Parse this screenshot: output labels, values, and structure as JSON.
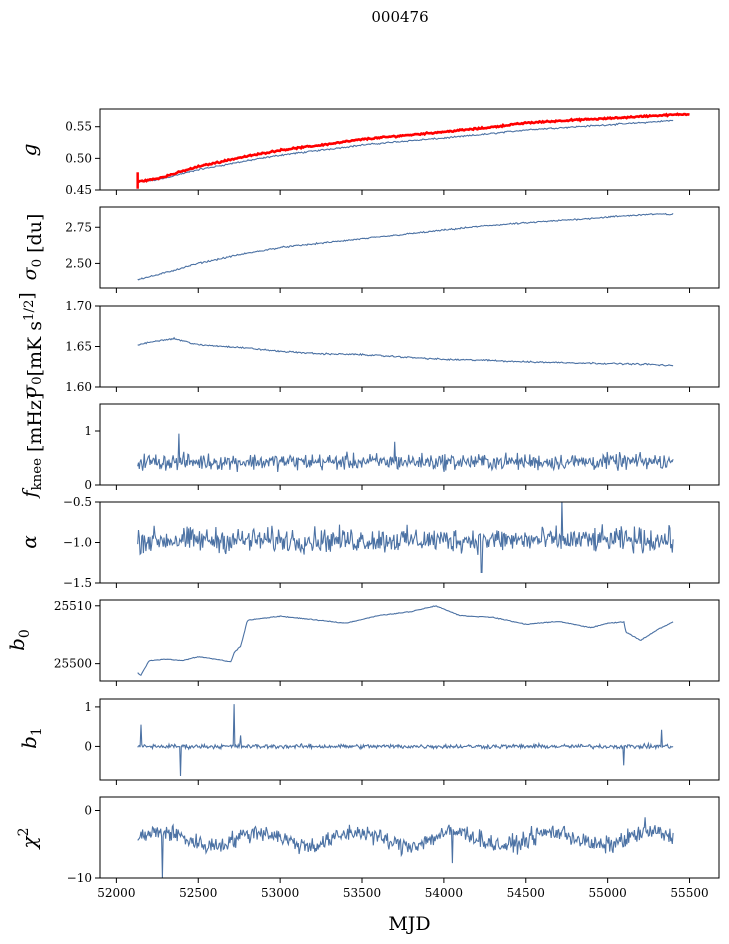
{
  "figure": {
    "title": "000476",
    "xlabel": "MJD"
  },
  "colors": {
    "series": "#4c72a4",
    "reference": "#ff0000",
    "axes": "#000000"
  },
  "chart_data": [
    {
      "type": "line",
      "ylabel": "$g$",
      "xlim": [
        51900,
        55680
      ],
      "ylim": [
        0.45,
        0.578
      ],
      "yticks": [
        0.45,
        0.5,
        0.55
      ],
      "ytick_labels": [
        "0.45",
        "0.50",
        "0.55"
      ],
      "grid": false,
      "x": [
        52130,
        52250,
        52500,
        52750,
        53000,
        53250,
        53500,
        53750,
        54000,
        54250,
        54500,
        54750,
        55000,
        55250,
        55400
      ],
      "series": [
        {
          "values": [
            0.463,
            0.466,
            0.482,
            0.494,
            0.505,
            0.513,
            0.521,
            0.527,
            0.532,
            0.538,
            0.545,
            0.549,
            0.553,
            0.557,
            0.56
          ]
        },
        {
          "values": [
            0.463,
            0.468,
            0.487,
            0.501,
            0.513,
            0.521,
            0.53,
            0.536,
            0.542,
            0.548,
            0.556,
            0.56,
            0.563,
            0.567,
            0.57
          ],
          "color": "red",
          "x_end": 55500
        }
      ]
    },
    {
      "type": "line",
      "ylabel": "$\\sigma_0$ [du]",
      "xlim": [
        51900,
        55680
      ],
      "ylim": [
        2.33,
        2.89
      ],
      "yticks": [
        2.5,
        2.75
      ],
      "ytick_labels": [
        "2.50",
        "2.75"
      ],
      "grid": false,
      "x": [
        52130,
        52250,
        52500,
        52750,
        53000,
        53250,
        53500,
        53750,
        54000,
        54250,
        54500,
        54750,
        55000,
        55250,
        55400
      ],
      "series": [
        {
          "values": [
            2.39,
            2.42,
            2.5,
            2.56,
            2.61,
            2.64,
            2.67,
            2.7,
            2.73,
            2.76,
            2.78,
            2.8,
            2.82,
            2.84,
            2.84
          ]
        }
      ]
    },
    {
      "type": "line",
      "ylabel": "$\\sigma_0[\\mathrm{mK\\,s^{1/2}}]$",
      "xlim": [
        51900,
        55680
      ],
      "ylim": [
        1.6,
        1.7
      ],
      "yticks": [
        1.6,
        1.65,
        1.7
      ],
      "ytick_labels": [
        "1.60",
        "1.65",
        "1.70"
      ],
      "grid": false,
      "x": [
        52130,
        52250,
        52350,
        52500,
        52750,
        53000,
        53250,
        53500,
        53750,
        54000,
        54250,
        54500,
        54750,
        55000,
        55250,
        55400
      ],
      "series": [
        {
          "values": [
            1.652,
            1.657,
            1.66,
            1.652,
            1.649,
            1.644,
            1.641,
            1.64,
            1.637,
            1.634,
            1.633,
            1.631,
            1.63,
            1.629,
            1.628,
            1.626
          ]
        }
      ]
    },
    {
      "type": "line",
      "ylabel": "$f_{\\mathrm{knee}}$ [mHz]",
      "xlim": [
        51900,
        55680
      ],
      "ylim": [
        0,
        1.5
      ],
      "yticks": [
        0,
        1
      ],
      "ytick_labels": [
        "0",
        "1"
      ],
      "grid": false,
      "noise": {
        "center": 0.43,
        "amplitude": 0.14,
        "x_start": 52130,
        "x_end": 55400
      },
      "spikes": [
        {
          "x": 52380,
          "y": 0.95
        },
        {
          "x": 53700,
          "y": 0.8
        }
      ],
      "series": [
        {
          "values": []
        }
      ]
    },
    {
      "type": "line",
      "ylabel": "$\\alpha$",
      "xlim": [
        51900,
        55680
      ],
      "ylim": [
        -1.5,
        -0.5
      ],
      "yticks": [
        -1.5,
        -1.0,
        -0.5
      ],
      "ytick_labels": [
        "−1.5",
        "−1.0",
        "−0.5"
      ],
      "grid": false,
      "noise": {
        "center": -0.97,
        "amplitude": 0.14,
        "x_start": 52130,
        "x_end": 55400
      },
      "spikes": [
        {
          "x": 54720,
          "y": -0.48
        },
        {
          "x": 54230,
          "y": -1.37
        }
      ],
      "series": [
        {
          "values": []
        }
      ]
    },
    {
      "type": "line",
      "ylabel": "$b_0$",
      "xlim": [
        51900,
        55680
      ],
      "ylim": [
        25497,
        25511
      ],
      "yticks": [
        25500,
        25510
      ],
      "ytick_labels": [
        "25500",
        "25510"
      ],
      "grid": false,
      "x": [
        52130,
        52150,
        52200,
        52300,
        52400,
        52500,
        52600,
        52700,
        52720,
        52760,
        52800,
        53000,
        53200,
        53400,
        53600,
        53800,
        53950,
        54100,
        54300,
        54500,
        54700,
        54900,
        55000,
        55100,
        55110,
        55200,
        55300,
        55400
      ],
      "series": [
        {
          "values": [
            25498.4,
            25498.0,
            25500.5,
            25500.8,
            25500.5,
            25501.2,
            25500.8,
            25500.3,
            25502.0,
            25503.0,
            25507.5,
            25508.2,
            25507.6,
            25507.0,
            25508.3,
            25509.0,
            25510.0,
            25508.3,
            25508.0,
            25506.8,
            25507.3,
            25506.2,
            25507.0,
            25507.2,
            25505.5,
            25504.0,
            25505.8,
            25507.2
          ]
        }
      ]
    },
    {
      "type": "line",
      "ylabel": "$b_1$",
      "xlim": [
        51900,
        55680
      ],
      "ylim": [
        -0.85,
        1.2
      ],
      "yticks": [
        0,
        1
      ],
      "ytick_labels": [
        "0",
        "1"
      ],
      "grid": false,
      "noise": {
        "center": 0.0,
        "amplitude": 0.05,
        "x_start": 52130,
        "x_end": 55400
      },
      "spikes": [
        {
          "x": 52150,
          "y": 0.55
        },
        {
          "x": 52390,
          "y": -0.75
        },
        {
          "x": 52720,
          "y": 1.07
        },
        {
          "x": 52760,
          "y": 0.28
        },
        {
          "x": 55100,
          "y": -0.48
        },
        {
          "x": 55330,
          "y": 0.42
        }
      ],
      "series": [
        {
          "values": []
        }
      ]
    },
    {
      "type": "line",
      "ylabel": "$\\chi^2$",
      "xlim": [
        51900,
        55680
      ],
      "ylim": [
        -10,
        2
      ],
      "yticks": [
        -10,
        0
      ],
      "ytick_labels": [
        "−10",
        "0"
      ],
      "grid": false,
      "noise": {
        "center": -4.2,
        "amplitude": 1.2,
        "x_start": 52130,
        "x_end": 55400
      },
      "spikes": [
        {
          "x": 52280,
          "y": -10.0
        },
        {
          "x": 54050,
          "y": -7.8
        },
        {
          "x": 55230,
          "y": -1.0
        }
      ],
      "series": [
        {
          "values": []
        }
      ]
    }
  ],
  "xaxis": {
    "ticks": [
      52000,
      52500,
      53000,
      53500,
      54000,
      54500,
      55000,
      55500
    ],
    "tick_labels": [
      "52000",
      "52500",
      "53000",
      "53500",
      "54000",
      "54500",
      "55000",
      "55500"
    ]
  }
}
